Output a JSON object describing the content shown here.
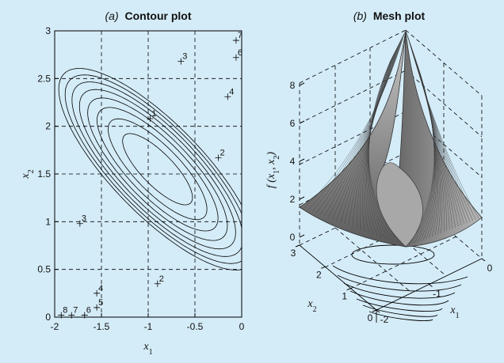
{
  "chart_data": [
    {
      "type": "contour",
      "title_prefix": "(a)",
      "title": "Contour plot",
      "xlabel": "x1",
      "ylabel": "x2",
      "xlim": [
        -2,
        0
      ],
      "ylim": [
        0,
        3
      ],
      "xticks": [
        "-2",
        "-1.5",
        "-1",
        "-0.5",
        "0"
      ],
      "yticks": [
        "0",
        "0.5",
        "1",
        "1.5",
        "2",
        "2.5",
        "3"
      ],
      "grid": "dashed",
      "contour_levels": [
        1,
        2,
        3,
        4,
        5,
        6,
        7,
        8
      ],
      "contour_labels": [
        {
          "text": "1",
          "x": -0.98,
          "y": 2.08
        },
        {
          "text": "2",
          "x": -0.9,
          "y": 0.35
        },
        {
          "text": "2",
          "x": -0.25,
          "y": 1.67
        },
        {
          "text": "3",
          "x": -1.73,
          "y": 0.98
        },
        {
          "text": "3",
          "x": -0.65,
          "y": 2.68
        },
        {
          "text": "4",
          "x": -1.55,
          "y": 0.25
        },
        {
          "text": "4",
          "x": -0.15,
          "y": 2.31
        },
        {
          "text": "5",
          "x": -1.55,
          "y": 0.1
        },
        {
          "text": "6",
          "x": -1.68,
          "y": 0.02
        },
        {
          "text": "6",
          "x": -0.06,
          "y": 2.72
        },
        {
          "text": "7",
          "x": -1.82,
          "y": 0.02
        },
        {
          "text": "7",
          "x": -0.06,
          "y": 2.9
        },
        {
          "text": "8",
          "x": -1.93,
          "y": 0.02
        }
      ]
    },
    {
      "type": "surface",
      "title_prefix": "(b)",
      "title": "Mesh plot",
      "zlabel": "f(x1, x2)",
      "xlabel": "x1",
      "ylabel": "x2",
      "zticks": [
        "0",
        "2",
        "4",
        "6",
        "8"
      ],
      "zlim": [
        0,
        8
      ],
      "x1_ticks": [
        "-2",
        "-1",
        "0"
      ],
      "x2_ticks": [
        "0",
        "1",
        "2",
        "3"
      ],
      "xlim": [
        -2,
        0
      ],
      "ylim": [
        0,
        3
      ],
      "surface_color": "#8c8c8c"
    }
  ]
}
